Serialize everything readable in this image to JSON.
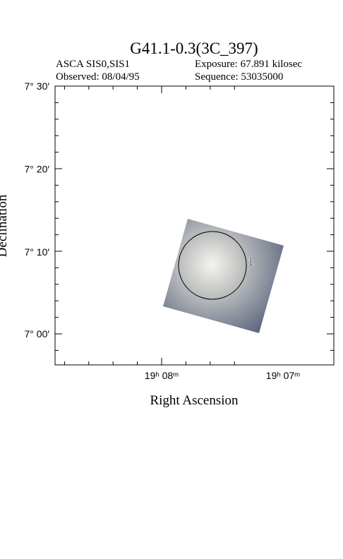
{
  "header": {
    "title": "G41.1-0.3(3C_397)",
    "instrument": "ASCA SIS0,SIS1",
    "exposure": "Exposure: 67.891 kilosec",
    "observed": "Observed: 08/04/95",
    "sequence": "Sequence: 53035000"
  },
  "axes": {
    "x_label": "Right Ascension",
    "y_label": "Declination",
    "y_ticks": [
      "7° 30′",
      "7° 20′",
      "7° 10′",
      "7° 00′"
    ],
    "x_ticks": [
      "19ʰ 08ᵐ",
      "19ʰ 07ᵐ"
    ]
  },
  "regions": [
    {
      "label": "1"
    }
  ]
}
